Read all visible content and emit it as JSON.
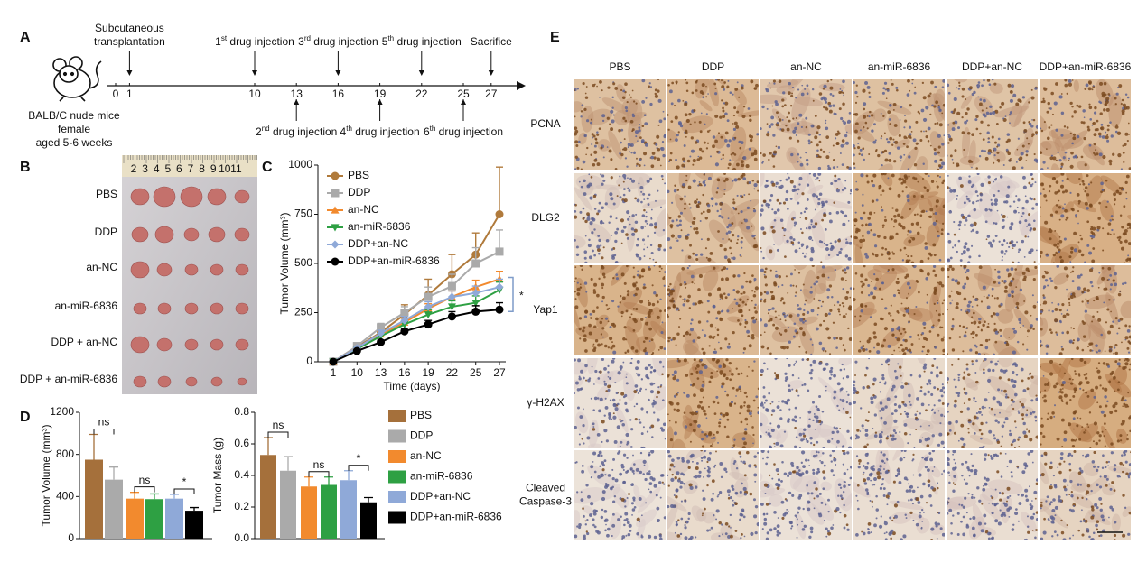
{
  "panel_labels": [
    "A",
    "B",
    "C",
    "D",
    "E"
  ],
  "timeline": {
    "subject": [
      "BALB/C nude mice",
      "female",
      "aged 5-6 weeks"
    ],
    "ticks": [
      0,
      1,
      10,
      13,
      16,
      19,
      22,
      25,
      27
    ],
    "events_above": [
      {
        "day": 1,
        "lines": [
          "Subcutaneous",
          "transplantation"
        ]
      },
      {
        "day": 10,
        "ordinal": "1",
        "suffix": "st",
        "text": " drug injection"
      },
      {
        "day": 16,
        "ordinal": "3",
        "suffix": "rd",
        "text": " drug injection"
      },
      {
        "day": 22,
        "ordinal": "5",
        "suffix": "th",
        "text": " drug injection"
      },
      {
        "day": 27,
        "lines": [
          "Sacrifice"
        ]
      }
    ],
    "events_below": [
      {
        "day": 13,
        "ordinal": "2",
        "suffix": "nd",
        "text": " drug injection"
      },
      {
        "day": 19,
        "ordinal": "4",
        "suffix": "th",
        "text": " drug injection"
      },
      {
        "day": 25,
        "ordinal": "6",
        "suffix": "th",
        "text": " drug injection"
      }
    ]
  },
  "photo": {
    "ruler": [
      2,
      3,
      4,
      5,
      6,
      7,
      8,
      9,
      10,
      11
    ],
    "groups": [
      "PBS",
      "DDP",
      "an-NC",
      "an-miR-6836",
      "DDP + an-NC",
      "DDP + an-miR-6836"
    ]
  },
  "chart_data": [
    {
      "type": "line",
      "xlabel": "Time (days)",
      "ylabel": "Tumor Volume (mm³)",
      "categories": [
        "1",
        "10",
        "13",
        "16",
        "19",
        "22",
        "25",
        "27"
      ],
      "ylim": [
        0,
        1000
      ],
      "yticks": [
        0,
        250,
        500,
        750,
        1000
      ],
      "annotations": [
        "*"
      ],
      "series": [
        {
          "name": "PBS",
          "color": "#b07a3b",
          "marker": "circle",
          "values": [
            0,
            75,
            150,
            240,
            340,
            445,
            545,
            750
          ],
          "errors": [
            0,
            15,
            25,
            50,
            80,
            100,
            110,
            240
          ]
        },
        {
          "name": "DDP",
          "color": "#aaaaaa",
          "marker": "square",
          "values": [
            0,
            80,
            175,
            250,
            330,
            385,
            500,
            560
          ],
          "errors": [
            0,
            10,
            20,
            30,
            50,
            60,
            80,
            110
          ]
        },
        {
          "name": "an-NC",
          "color": "#f28a2e",
          "marker": "triangle",
          "values": [
            0,
            70,
            140,
            200,
            270,
            330,
            380,
            420
          ],
          "errors": [
            0,
            8,
            15,
            20,
            25,
            30,
            35,
            40
          ]
        },
        {
          "name": "an-miR-6836",
          "color": "#2ea043",
          "marker": "triangle-down",
          "values": [
            0,
            65,
            130,
            190,
            240,
            280,
            300,
            365
          ],
          "errors": [
            0,
            8,
            15,
            20,
            25,
            30,
            35,
            40
          ]
        },
        {
          "name": "DDP+an-NC",
          "color": "#8fa9d8",
          "marker": "diamond",
          "values": [
            0,
            70,
            145,
            210,
            280,
            330,
            350,
            380
          ],
          "errors": [
            0,
            8,
            15,
            20,
            25,
            30,
            35,
            40
          ]
        },
        {
          "name": "DDP+an-miR-6836",
          "color": "#000000",
          "marker": "circle",
          "values": [
            0,
            55,
            100,
            155,
            190,
            230,
            255,
            265
          ],
          "errors": [
            0,
            8,
            10,
            15,
            20,
            25,
            30,
            35
          ]
        }
      ]
    },
    {
      "type": "bar",
      "ylabel": "Tumor Volume (mm³)",
      "categories": [
        "PBS",
        "DDP",
        "an-NC",
        "an-miR-6836",
        "DDP+an-NC",
        "DDP+an-miR-6836"
      ],
      "colors": [
        "#a5703b",
        "#aaaaaa",
        "#f28a2e",
        "#2ea043",
        "#8fa9d8",
        "#000000"
      ],
      "values": [
        750,
        560,
        380,
        375,
        380,
        265
      ],
      "errors": [
        240,
        120,
        60,
        50,
        40,
        30
      ],
      "ylim": [
        0,
        1200
      ],
      "yticks": [
        0,
        400,
        800,
        1200
      ],
      "annotations": [
        "ns",
        "ns",
        "*"
      ]
    },
    {
      "type": "bar",
      "ylabel": "Tumor Mass (g)",
      "categories": [
        "PBS",
        "DDP",
        "an-NC",
        "an-miR-6836",
        "DDP+an-NC",
        "DDP+an-miR-6836"
      ],
      "colors": [
        "#a5703b",
        "#aaaaaa",
        "#f28a2e",
        "#2ea043",
        "#8fa9d8",
        "#000000"
      ],
      "values": [
        0.53,
        0.43,
        0.33,
        0.34,
        0.37,
        0.23
      ],
      "errors": [
        0.11,
        0.09,
        0.06,
        0.05,
        0.06,
        0.03
      ],
      "ylim": [
        0,
        0.8
      ],
      "yticks": [
        {
          "value": 0,
          "label": "0.0"
        },
        {
          "value": 0.2,
          "label": "0.2"
        },
        {
          "value": 0.4,
          "label": "0.4"
        },
        {
          "value": 0.6,
          "label": "0.6"
        },
        {
          "value": 0.8,
          "label": "0.8"
        }
      ],
      "annotations": [
        "ns",
        "ns",
        "*"
      ],
      "legend": true
    }
  ],
  "ihc": {
    "columns": [
      "PBS",
      "DDP",
      "an-NC",
      "an-miR-6836",
      "DDP+an-NC",
      "DDP+an-miR-6836"
    ],
    "rows": [
      [
        "PCNA"
      ],
      [
        "DLG2"
      ],
      [
        "Yap1"
      ],
      [
        "γ-H2AX"
      ],
      [
        "Cleaved",
        "Caspase-3"
      ]
    ]
  }
}
